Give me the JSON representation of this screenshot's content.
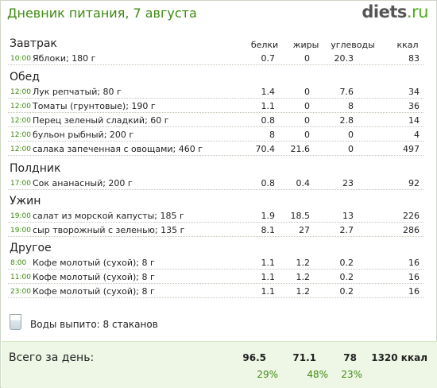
{
  "header": {
    "title": "Дневник питания, 7 августа",
    "logo_main": "diets",
    "logo_tld": ".ru"
  },
  "columns": {
    "protein": "белки",
    "fat": "жиры",
    "carbs": "углеводы",
    "kcal": "ккал"
  },
  "sections": [
    {
      "title": "Завтрак",
      "items": [
        {
          "time": "10:00",
          "name": "Яблоки; 180 г",
          "protein": "0.7",
          "fat": "0",
          "carbs": "20.3",
          "kcal": "83"
        }
      ]
    },
    {
      "title": "Обед",
      "items": [
        {
          "time": "12:00",
          "name": "Лук репчатый; 80 г",
          "protein": "1.4",
          "fat": "0",
          "carbs": "7.6",
          "kcal": "34"
        },
        {
          "time": "12:00",
          "name": "Томаты (грунтовые); 190 г",
          "protein": "1.1",
          "fat": "0",
          "carbs": "8",
          "kcal": "36"
        },
        {
          "time": "12:00",
          "name": "Перец зеленый сладкий; 60 г",
          "protein": "0.8",
          "fat": "0",
          "carbs": "2.8",
          "kcal": "14"
        },
        {
          "time": "12:00",
          "name": "бульон рыбный; 200 г",
          "protein": "8",
          "fat": "0",
          "carbs": "0",
          "kcal": "4"
        },
        {
          "time": "12:00",
          "name": "салака запеченная с овощами; 460 г",
          "protein": "70.4",
          "fat": "21.6",
          "carbs": "0",
          "kcal": "497"
        }
      ]
    },
    {
      "title": "Полдник",
      "items": [
        {
          "time": "17:00",
          "name": "Сок ананасный; 200 г",
          "protein": "0.8",
          "fat": "0.4",
          "carbs": "23",
          "kcal": "92"
        }
      ]
    },
    {
      "title": "Ужин",
      "items": [
        {
          "time": "19:00",
          "name": "салат из морской капусты; 185 г",
          "protein": "1.9",
          "fat": "18.5",
          "carbs": "13",
          "kcal": "226"
        },
        {
          "time": "19:00",
          "name": "сыр творожный с зеленью; 135 г",
          "protein": "8.1",
          "fat": "27",
          "carbs": "2.7",
          "kcal": "286"
        }
      ]
    },
    {
      "title": "Другое",
      "items": [
        {
          "time": "8:00",
          "name": "Кофе молотый (сухой); 8 г",
          "protein": "1.1",
          "fat": "1.2",
          "carbs": "0.2",
          "kcal": "16"
        },
        {
          "time": "11:00",
          "name": "Кофе молотый (сухой); 8 г",
          "protein": "1.1",
          "fat": "1.2",
          "carbs": "0.2",
          "kcal": "16"
        },
        {
          "time": "23:00",
          "name": "Кофе молотый (сухой); 8 г",
          "protein": "1.1",
          "fat": "1.2",
          "carbs": "0.2",
          "kcal": "16"
        }
      ]
    }
  ],
  "water": {
    "icon": "water-glass-icon",
    "label": "Воды выпито: 8 стаканов"
  },
  "total": {
    "label": "Всего за день:",
    "protein": "96.5",
    "fat": "71.1",
    "carbs": "78",
    "kcal": "1320 ккал",
    "protein_pct": "29%",
    "fat_pct": "48%",
    "carbs_pct": "23%"
  },
  "colors": {
    "accent_green": "#3f8a12",
    "total_bg": "#eef7e6"
  }
}
